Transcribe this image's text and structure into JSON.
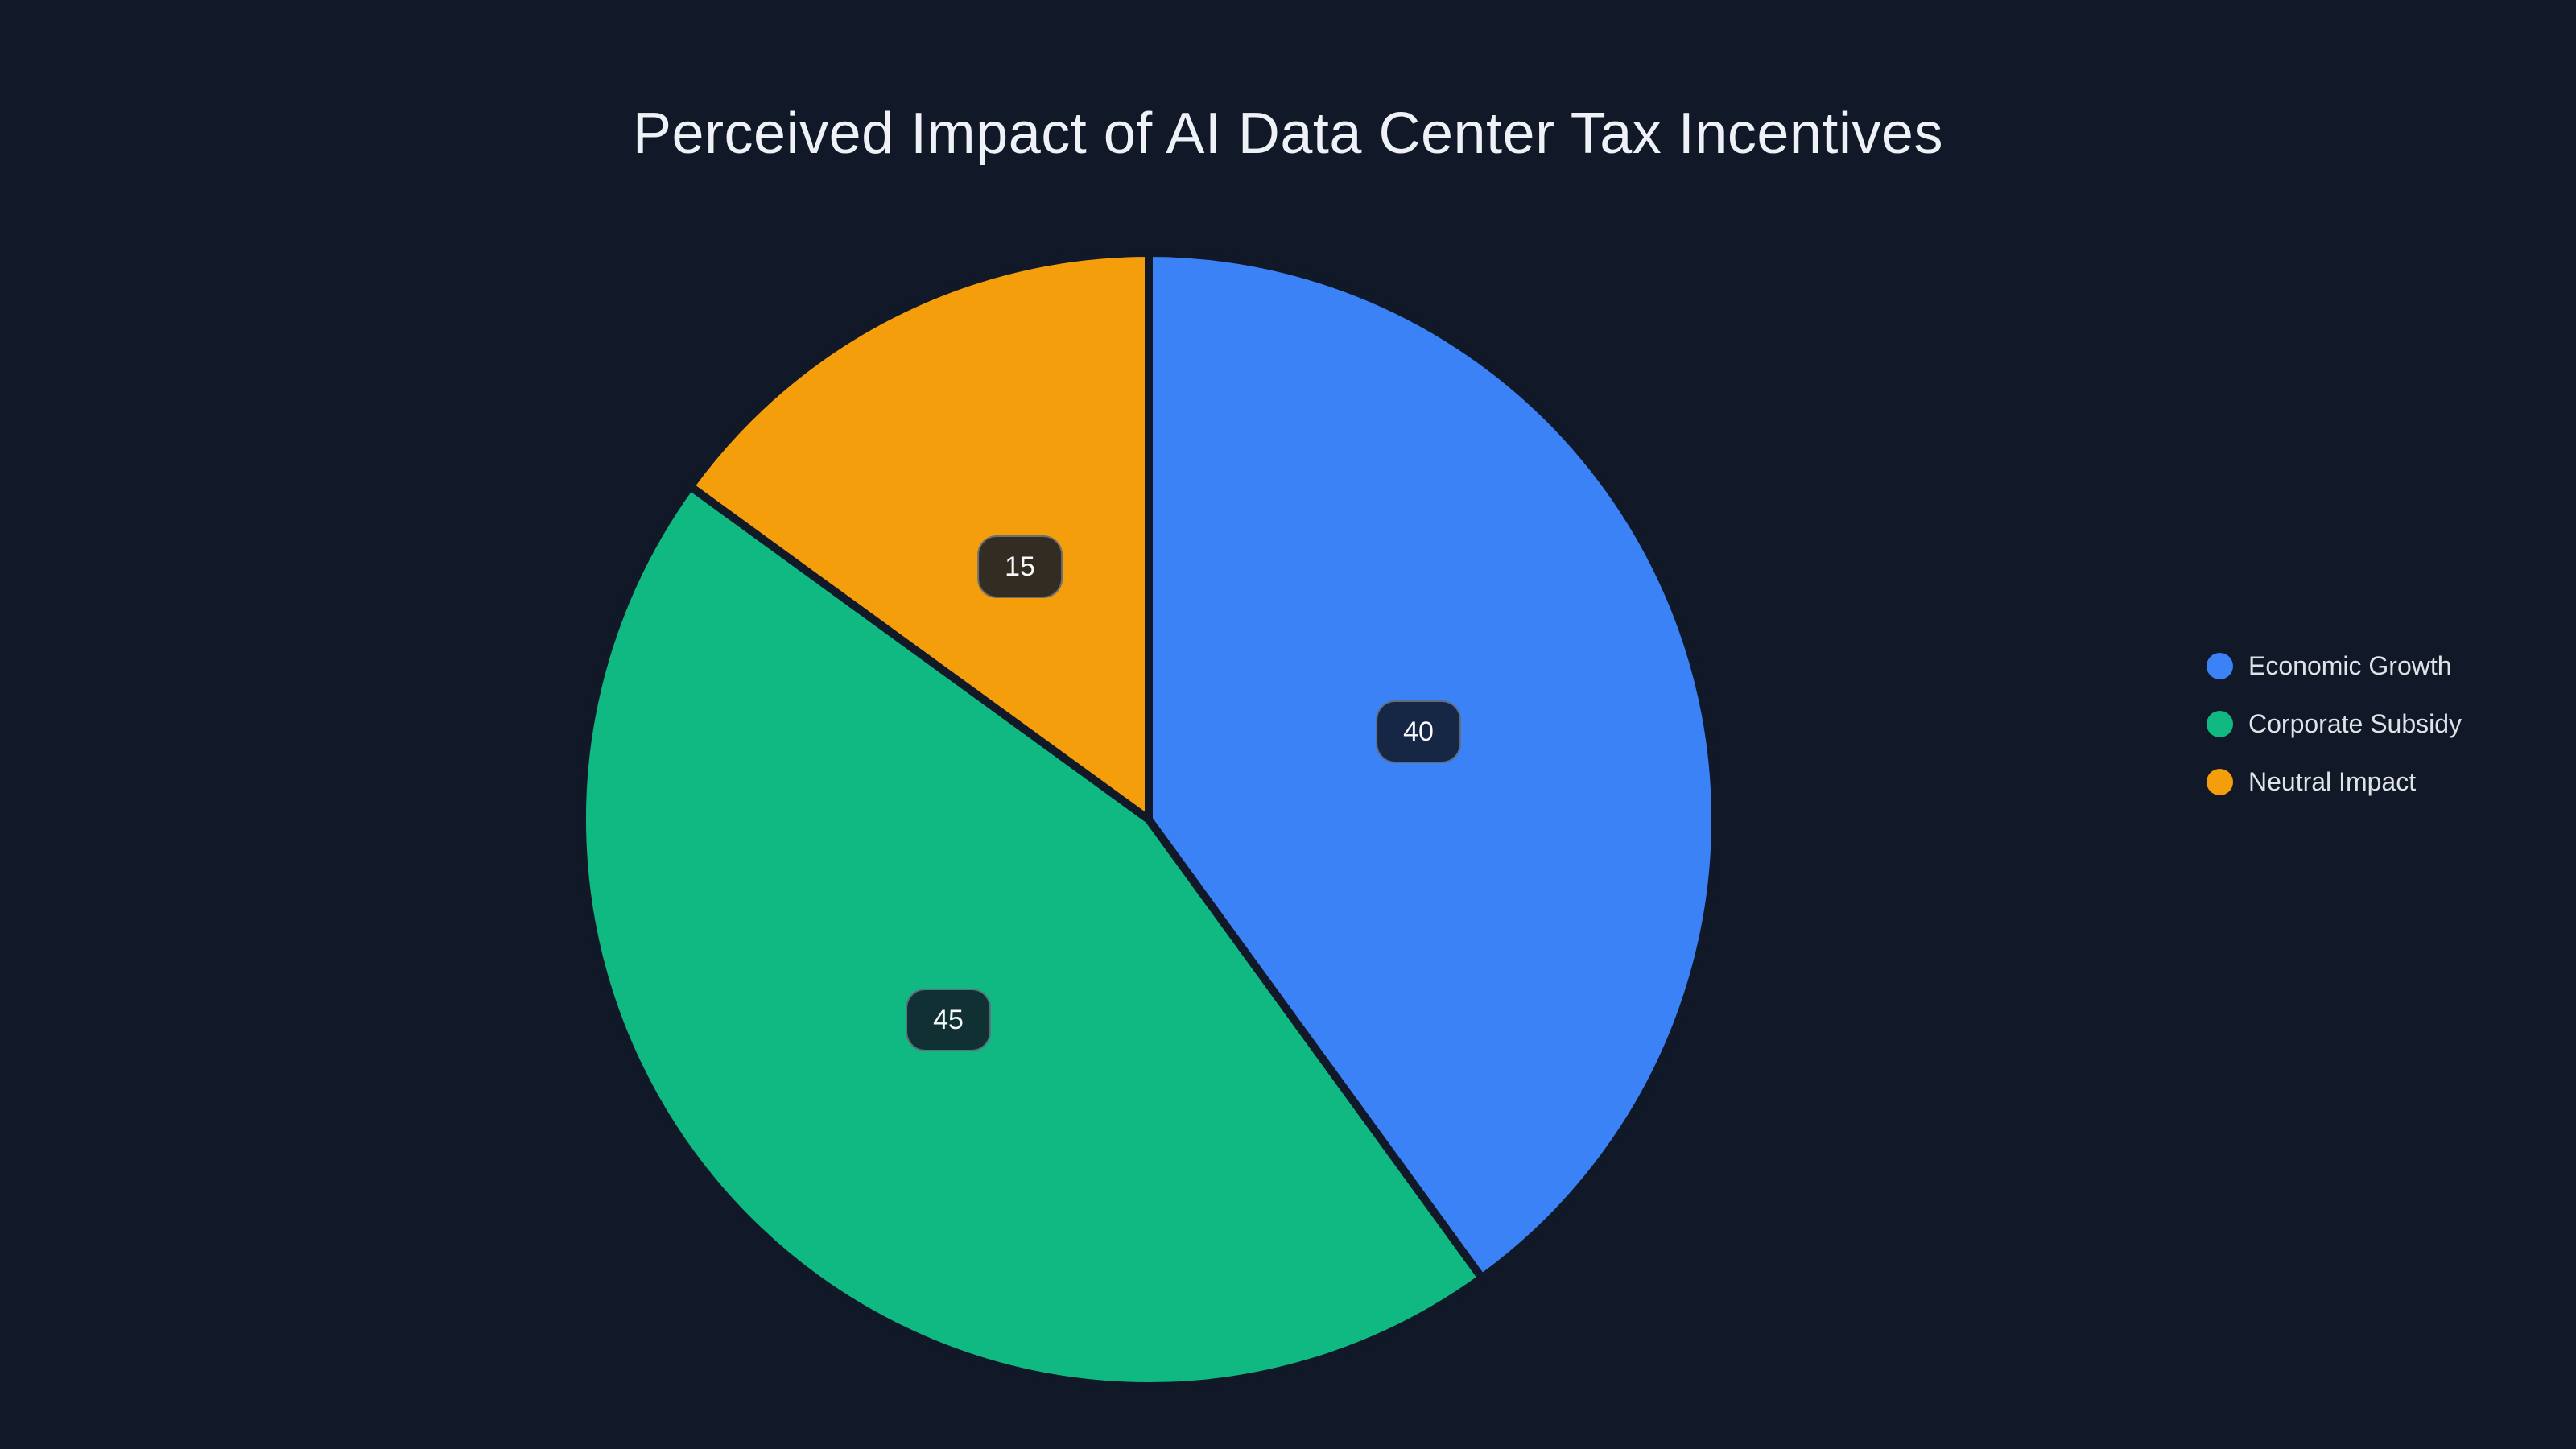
{
  "chart_data": {
    "type": "pie",
    "title": "Perceived Impact of AI Data Center Tax Incentives",
    "slices": [
      {
        "label": "Economic Growth",
        "value": 40,
        "color": "#3b82f6"
      },
      {
        "label": "Corporate Subsidy",
        "value": 45,
        "color": "#10b981"
      },
      {
        "label": "Neutral Impact",
        "value": 15,
        "color": "#f59e0b"
      }
    ],
    "start_angle_deg": 0,
    "direction": "clockwise",
    "value_labels": "inside",
    "legend_position": "middle-right"
  },
  "colors": {
    "background": "#111827",
    "slice_divider": "#111827",
    "title_text": "#eef1f5",
    "legend_text": "#dfe3e8",
    "label_box_bg": "rgba(17, 24, 39, 0.85)",
    "label_box_border": "rgba(203, 213, 225, 0.4)",
    "label_text": "#f8fafc"
  }
}
